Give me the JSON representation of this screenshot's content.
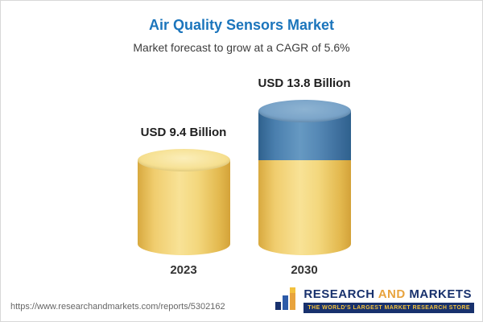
{
  "header": {
    "title": "Air Quality Sensors Market",
    "subtitle": "Market forecast to grow at a CAGR of 5.6%"
  },
  "chart_data": {
    "type": "bar",
    "categories": [
      "2023",
      "2030"
    ],
    "values": [
      9.4,
      13.8
    ],
    "value_labels": [
      "USD 9.4 Billion",
      "USD 13.8 Billion"
    ],
    "unit": "USD Billion",
    "title": "Air Quality Sensors Market",
    "subtitle": "Market forecast to grow at a CAGR of 5.6%",
    "cagr": "5.6%",
    "legend_position": "none",
    "grid": false,
    "colors": {
      "base_segment": "#F2CE68",
      "growth_segment": "#4679A8",
      "title_accent": "#1b75bc"
    }
  },
  "footer": {
    "url": "https://www.researchandmarkets.com/reports/5302162",
    "logo": {
      "word1": "RESEARCH",
      "word2": "AND",
      "word3": "MARKETS",
      "tagline": "THE WORLD'S LARGEST MARKET RESEARCH STORE"
    }
  }
}
